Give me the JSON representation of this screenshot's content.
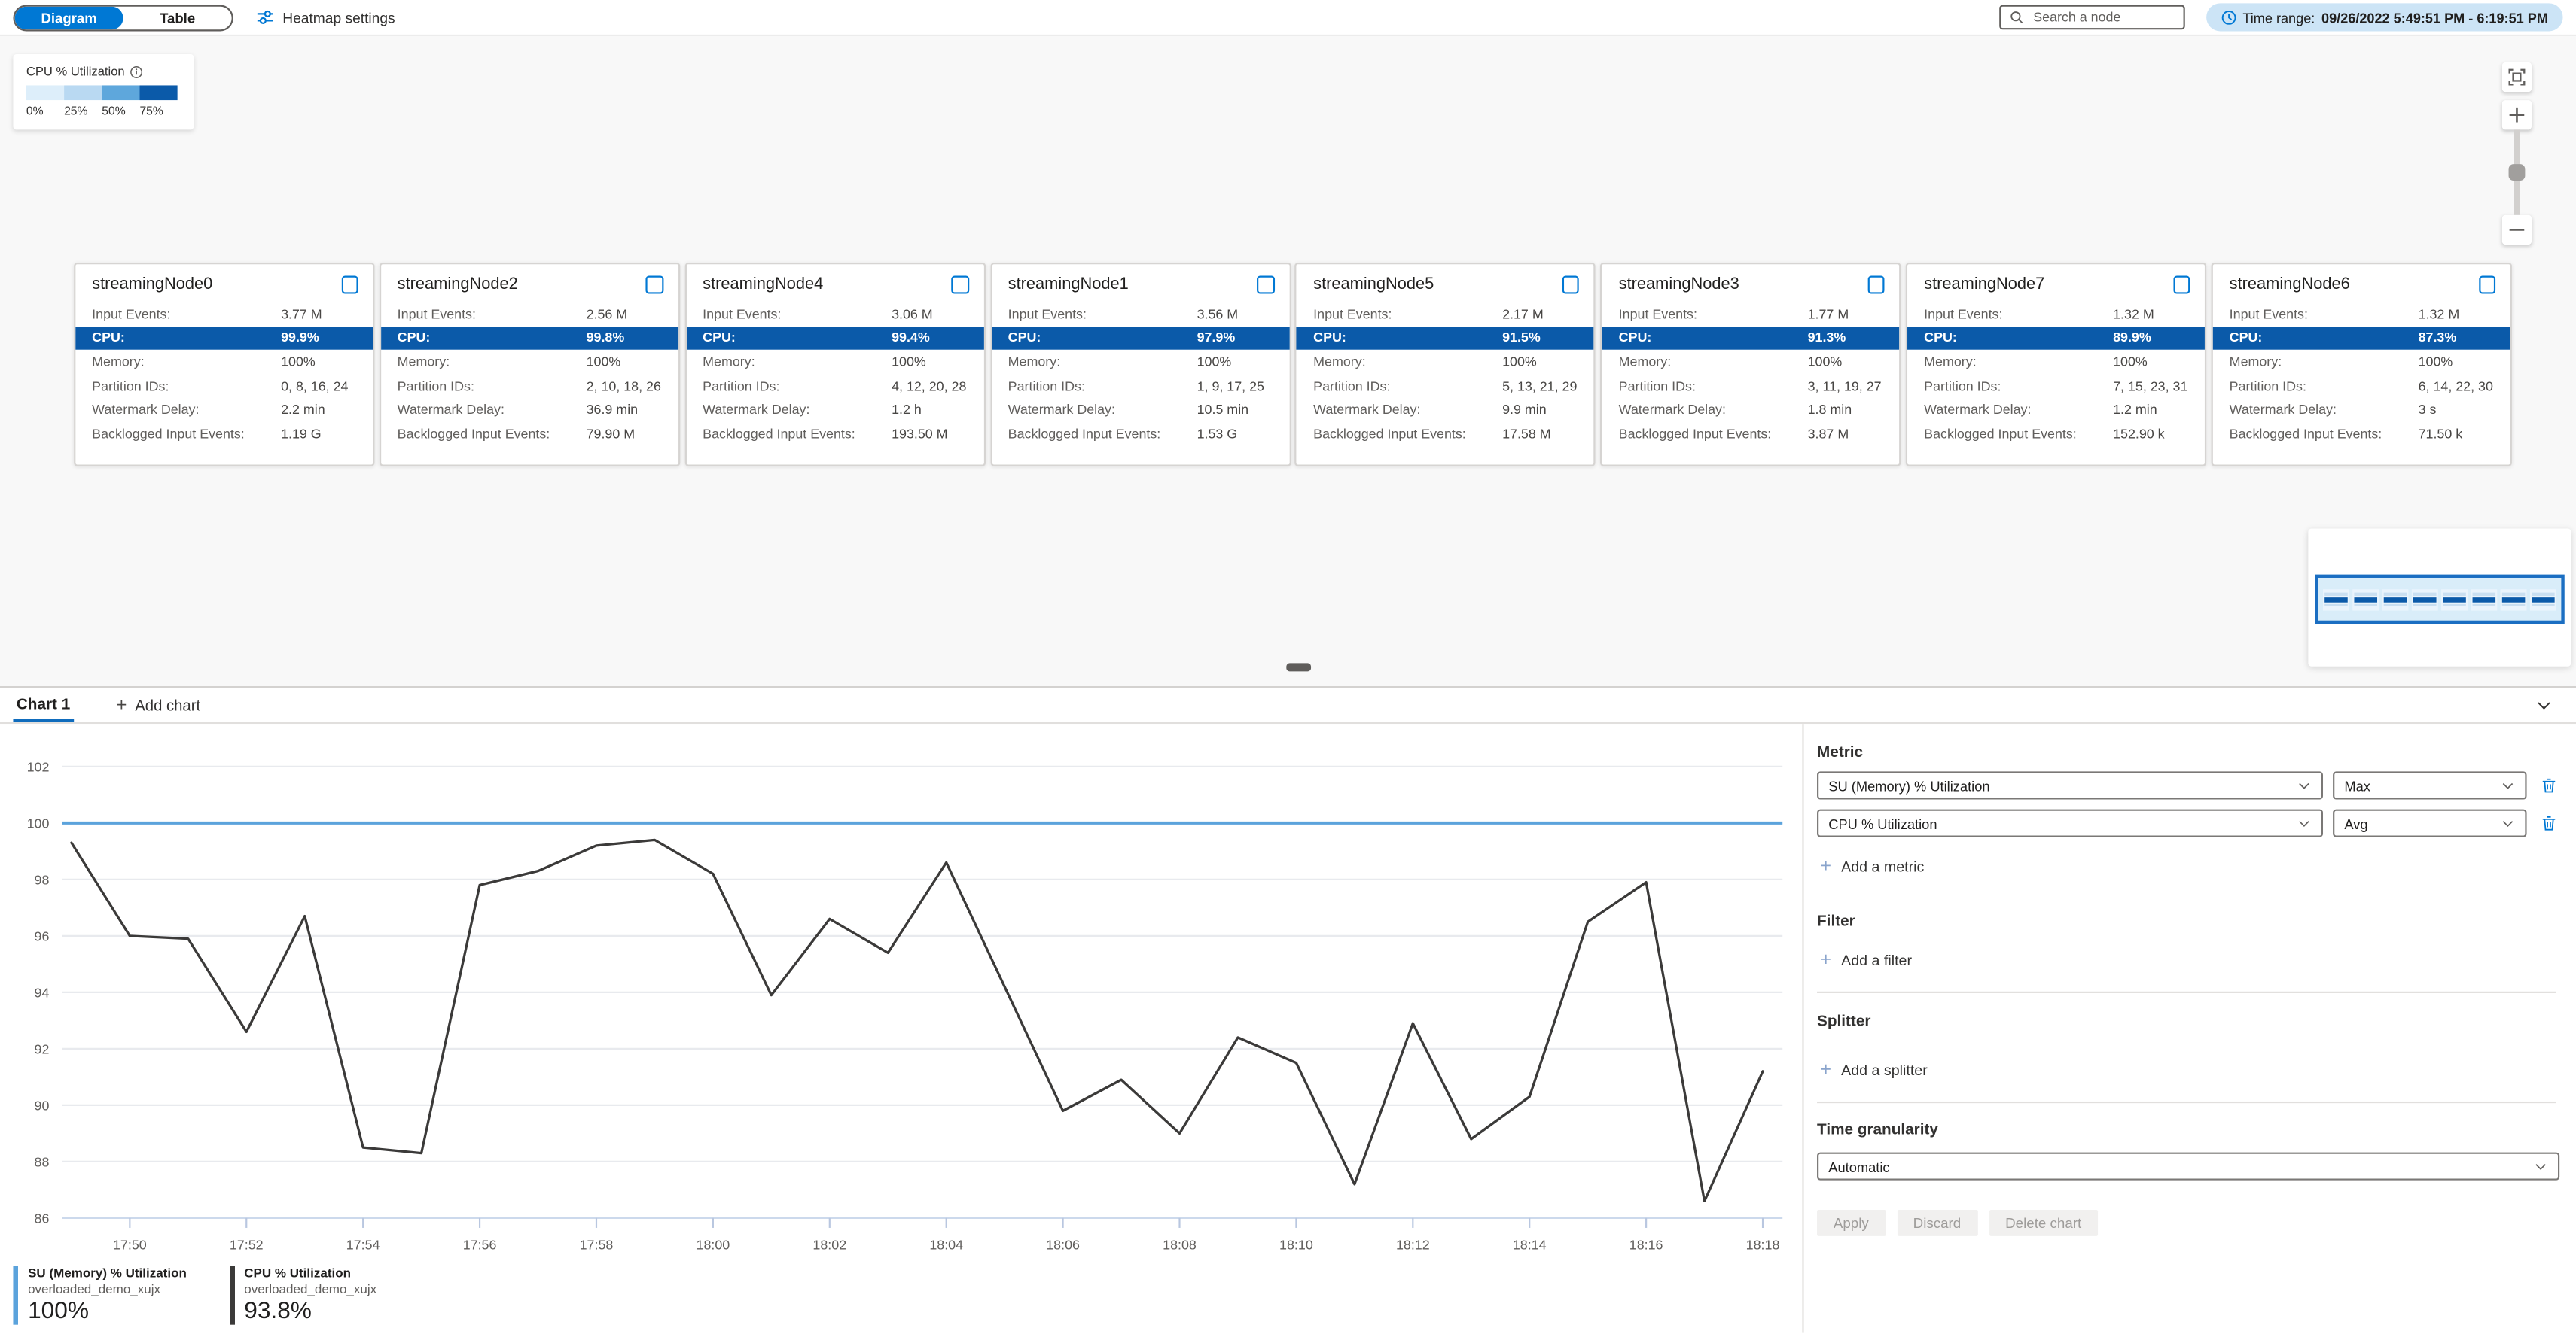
{
  "toolbar": {
    "view_toggle": {
      "diagram": "Diagram",
      "table": "Table"
    },
    "heatmap_settings": "Heatmap settings",
    "search_placeholder": "Search a node",
    "time_range_label": "Time range:",
    "time_range_value": "09/26/2022 5:49:51 PM - 6:19:51 PM"
  },
  "heatmap_legend": {
    "title": "CPU % Utilization",
    "stops": [
      {
        "label": "0%",
        "color": "#ddeefa"
      },
      {
        "label": "25%",
        "color": "#b9d9f2"
      },
      {
        "label": "50%",
        "color": "#5ea7dc"
      },
      {
        "label": "75%",
        "color": "#0b5aa9"
      }
    ]
  },
  "node_row_labels": {
    "input_events": "Input Events:",
    "cpu": "CPU:",
    "memory": "Memory:",
    "partition_ids": "Partition IDs:",
    "watermark_delay": "Watermark Delay:",
    "backlogged": "Backlogged Input Events:"
  },
  "nodes": [
    {
      "name": "streamingNode0",
      "input_events": "3.77 M",
      "cpu": "99.9%",
      "memory": "100%",
      "partition_ids": "0, 8, 16, 24",
      "watermark_delay": "2.2 min",
      "backlogged": "1.19 G"
    },
    {
      "name": "streamingNode2",
      "input_events": "2.56 M",
      "cpu": "99.8%",
      "memory": "100%",
      "partition_ids": "2, 10, 18, 26",
      "watermark_delay": "36.9 min",
      "backlogged": "79.90 M"
    },
    {
      "name": "streamingNode4",
      "input_events": "3.06 M",
      "cpu": "99.4%",
      "memory": "100%",
      "partition_ids": "4, 12, 20, 28",
      "watermark_delay": "1.2 h",
      "backlogged": "193.50 M"
    },
    {
      "name": "streamingNode1",
      "input_events": "3.56 M",
      "cpu": "97.9%",
      "memory": "100%",
      "partition_ids": "1, 9, 17, 25",
      "watermark_delay": "10.5 min",
      "backlogged": "1.53 G"
    },
    {
      "name": "streamingNode5",
      "input_events": "2.17 M",
      "cpu": "91.5%",
      "memory": "100%",
      "partition_ids": "5, 13, 21, 29",
      "watermark_delay": "9.9 min",
      "backlogged": "17.58 M"
    },
    {
      "name": "streamingNode3",
      "input_events": "1.77 M",
      "cpu": "91.3%",
      "memory": "100%",
      "partition_ids": "3, 11, 19, 27",
      "watermark_delay": "1.8 min",
      "backlogged": "3.87 M"
    },
    {
      "name": "streamingNode7",
      "input_events": "1.32 M",
      "cpu": "89.9%",
      "memory": "100%",
      "partition_ids": "7, 15, 23, 31",
      "watermark_delay": "1.2 min",
      "backlogged": "152.90 k"
    },
    {
      "name": "streamingNode6",
      "input_events": "1.32 M",
      "cpu": "87.3%",
      "memory": "100%",
      "partition_ids": "6, 14, 22, 30",
      "watermark_delay": "3 s",
      "backlogged": "71.50 k"
    }
  ],
  "chart_tabs": {
    "active": "Chart 1",
    "add": "Add chart"
  },
  "panel": {
    "metric_label": "Metric",
    "metrics": [
      {
        "metric": "SU (Memory) % Utilization",
        "agg": "Max"
      },
      {
        "metric": "CPU % Utilization",
        "agg": "Avg"
      }
    ],
    "add_metric": "Add a metric",
    "filter_label": "Filter",
    "add_filter": "Add a filter",
    "splitter_label": "Splitter",
    "add_splitter": "Add a splitter",
    "time_granularity_label": "Time granularity",
    "time_granularity_value": "Automatic",
    "buttons": {
      "apply": "Apply",
      "discard": "Discard",
      "delete": "Delete chart"
    }
  },
  "legend": [
    {
      "name": "SU (Memory) % Utilization",
      "resource": "overloaded_demo_xujx",
      "value": "100%",
      "color": "#5ba3dc"
    },
    {
      "name": "CPU % Utilization",
      "resource": "overloaded_demo_xujx",
      "value": "93.8%",
      "color": "#3b3a39"
    }
  ],
  "chart_data": {
    "type": "line",
    "title": "",
    "xlabel": "",
    "ylabel": "",
    "ylim": [
      86,
      102
    ],
    "yticks": [
      86,
      88,
      90,
      92,
      94,
      96,
      98,
      100,
      102
    ],
    "grid": true,
    "legend_position": "bottom-left",
    "x": [
      "17:49",
      "17:50",
      "17:51",
      "17:52",
      "17:53",
      "17:54",
      "17:55",
      "17:56",
      "17:57",
      "17:58",
      "17:59",
      "18:00",
      "18:01",
      "18:02",
      "18:03",
      "18:04",
      "18:05",
      "18:06",
      "18:07",
      "18:08",
      "18:09",
      "18:10",
      "18:11",
      "18:12",
      "18:13",
      "18:14",
      "18:15",
      "18:16",
      "18:17",
      "18:18"
    ],
    "xtick_labels": [
      "17:50",
      "17:52",
      "17:54",
      "17:56",
      "17:58",
      "18:00",
      "18:02",
      "18:04",
      "18:06",
      "18:08",
      "18:10",
      "18:12",
      "18:14",
      "18:16",
      "18:18"
    ],
    "series": [
      {
        "name": "SU (Memory) % Utilization",
        "color": "#5ba3dc",
        "aggregation": "Max",
        "values": [
          100,
          100,
          100,
          100,
          100,
          100,
          100,
          100,
          100,
          100,
          100,
          100,
          100,
          100,
          100,
          100,
          100,
          100,
          100,
          100,
          100,
          100,
          100,
          100,
          100,
          100,
          100,
          100,
          100,
          100
        ]
      },
      {
        "name": "CPU % Utilization",
        "color": "#3b3a39",
        "aggregation": "Avg",
        "values": [
          99.3,
          96.0,
          95.9,
          92.6,
          96.7,
          88.5,
          88.3,
          97.8,
          98.3,
          99.2,
          99.4,
          98.2,
          93.9,
          96.6,
          95.4,
          98.6,
          94.2,
          89.8,
          90.9,
          89.0,
          92.4,
          91.5,
          87.2,
          92.9,
          88.8,
          90.3,
          96.5,
          97.9,
          86.6,
          91.2
        ]
      }
    ]
  }
}
